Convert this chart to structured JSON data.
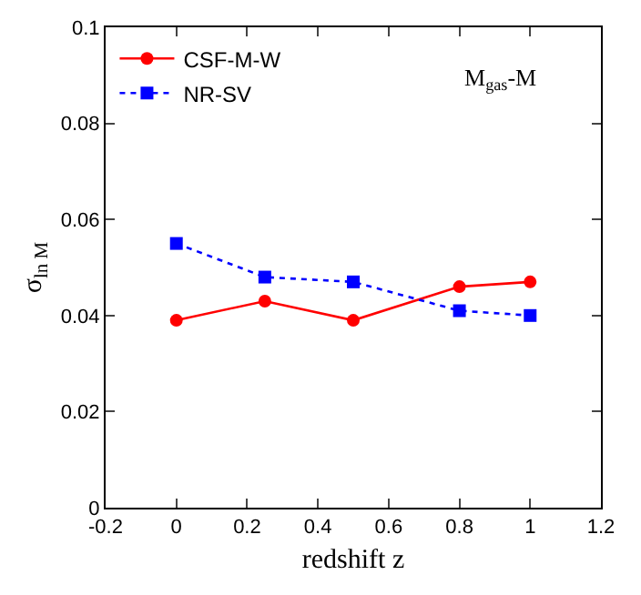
{
  "chart_data": {
    "type": "line",
    "xlabel": "redshift z",
    "ylabel": "σ$_{ln M}$",
    "annotations": [
      "M$_{gas}$-M"
    ],
    "x": [
      0,
      0.25,
      0.5,
      0.8,
      1
    ],
    "series": [
      {
        "name": "CSF-M-W",
        "color": "#ff0000",
        "values": [
          0.039,
          0.043,
          0.039,
          0.046,
          0.047
        ],
        "marker": "circle",
        "line_style": "solid"
      },
      {
        "name": "NR-SV",
        "color": "#0000ff",
        "values": [
          0.055,
          0.048,
          0.047,
          0.041,
          0.04
        ],
        "marker": "square",
        "line_style": "dotted"
      }
    ],
    "xlim": [
      -0.2,
      1.2
    ],
    "xticks": [
      -0.2,
      0,
      0.2,
      0.4,
      0.6,
      0.8,
      1,
      1.2
    ],
    "ylim": [
      0,
      0.1
    ],
    "yticks": [
      0,
      0.02,
      0.04,
      0.06,
      0.08,
      0.1
    ],
    "grid": false,
    "legend": "top left"
  }
}
